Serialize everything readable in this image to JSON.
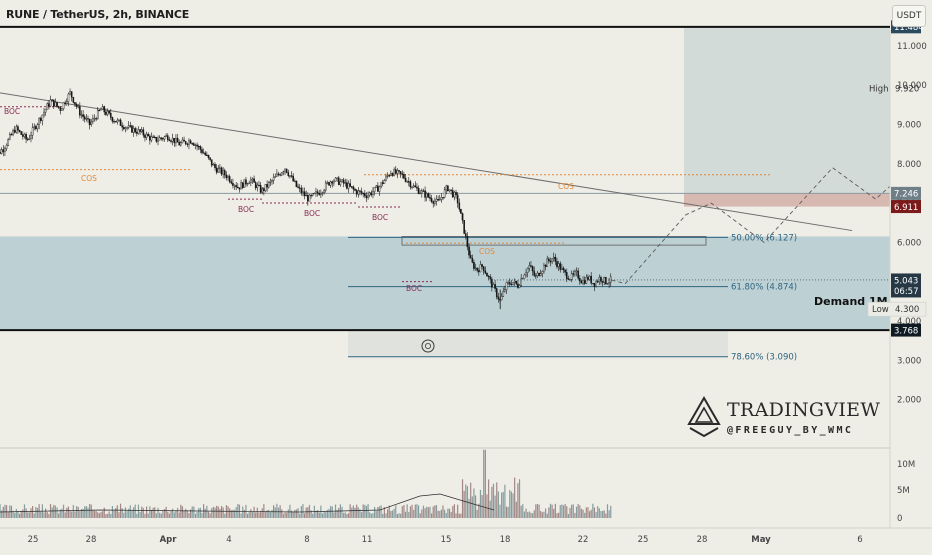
{
  "header": {
    "title": "RUNE / TetherUS, 2h, BINANCE"
  },
  "toolbar": {
    "currency_label": "USDT"
  },
  "watermark": {
    "brand": "TRADINGVIEW",
    "handle": "@FREEGUY_BY_WMC",
    "logo_icon": "pyramid-logo-icon"
  },
  "colors": {
    "background": "#eeede6",
    "candle": "#141414",
    "demand_zone": "#b7cdd3",
    "target_zone": "#d3dbd8",
    "fib_line": "#2e6580",
    "cos_line": "#e08a3c",
    "boc_line": "#8a2d57",
    "resistance_label": "#2c4a5e",
    "support_label": "#0f1a22",
    "stop_label": "#7b1a1a",
    "volume": "#6c8a8f"
  },
  "chart_data": {
    "type": "candlestick",
    "symbol": "RUNE / TetherUS",
    "interval": "2h",
    "exchange": "BINANCE",
    "price_axis": {
      "ticks": [
        "11.000",
        "10.000",
        "9.000",
        "8.000",
        "7.000",
        "6.000",
        "5.000",
        "4.000",
        "3.000",
        "2.000"
      ],
      "range": [
        1.6,
        11.8
      ]
    },
    "time_axis": {
      "ticks": [
        "25",
        "28",
        "Apr",
        "4",
        "8",
        "11",
        "15",
        "18",
        "22",
        "25",
        "28",
        "May",
        "6"
      ]
    },
    "volume_axis": {
      "ticks": [
        "10M",
        "5M",
        "0"
      ]
    },
    "price_path": [
      {
        "t": 23.0,
        "p": 8.1
      },
      {
        "t": 23.6,
        "p": 8.4
      },
      {
        "t": 24.2,
        "p": 8.9
      },
      {
        "t": 24.8,
        "p": 8.6
      },
      {
        "t": 25.4,
        "p": 9.1
      },
      {
        "t": 26.0,
        "p": 9.6
      },
      {
        "t": 26.5,
        "p": 9.4
      },
      {
        "t": 27.0,
        "p": 9.8
      },
      {
        "t": 27.5,
        "p": 9.3
      },
      {
        "t": 28.0,
        "p": 9.0
      },
      {
        "t": 28.6,
        "p": 9.4
      },
      {
        "t": 29.3,
        "p": 9.1
      },
      {
        "t": 30.0,
        "p": 8.9
      },
      {
        "t": 30.6,
        "p": 8.8
      },
      {
        "t": 31.3,
        "p": 8.6
      },
      {
        "t": 32.0,
        "p": 8.7
      },
      {
        "t": 32.6,
        "p": 8.5
      },
      {
        "t": 33.2,
        "p": 8.6
      },
      {
        "t": 33.8,
        "p": 8.3
      },
      {
        "t": 34.4,
        "p": 7.9
      },
      {
        "t": 35.0,
        "p": 7.7
      },
      {
        "t": 35.6,
        "p": 7.4
      },
      {
        "t": 36.2,
        "p": 7.6
      },
      {
        "t": 36.8,
        "p": 7.3
      },
      {
        "t": 37.4,
        "p": 7.6
      },
      {
        "t": 38.0,
        "p": 7.9
      },
      {
        "t": 38.6,
        "p": 7.4
      },
      {
        "t": 39.2,
        "p": 7.1
      },
      {
        "t": 39.8,
        "p": 7.3
      },
      {
        "t": 40.4,
        "p": 7.6
      },
      {
        "t": 41.0,
        "p": 7.5
      },
      {
        "t": 41.6,
        "p": 7.3
      },
      {
        "t": 42.2,
        "p": 7.2
      },
      {
        "t": 42.8,
        "p": 7.4
      },
      {
        "t": 43.4,
        "p": 7.8
      },
      {
        "t": 44.0,
        "p": 7.7
      },
      {
        "t": 44.6,
        "p": 7.4
      },
      {
        "t": 45.2,
        "p": 7.2
      },
      {
        "t": 45.8,
        "p": 7.0
      },
      {
        "t": 46.3,
        "p": 7.4
      },
      {
        "t": 46.8,
        "p": 7.1
      },
      {
        "t": 47.2,
        "p": 6.2
      },
      {
        "t": 47.5,
        "p": 5.5
      },
      {
        "t": 47.8,
        "p": 5.3
      },
      {
        "t": 48.1,
        "p": 5.4
      },
      {
        "t": 48.4,
        "p": 5.1
      },
      {
        "t": 48.7,
        "p": 4.8
      },
      {
        "t": 49.0,
        "p": 4.5
      },
      {
        "t": 49.3,
        "p": 4.9
      },
      {
        "t": 49.6,
        "p": 5.0
      },
      {
        "t": 49.9,
        "p": 4.9
      },
      {
        "t": 50.2,
        "p": 5.2
      },
      {
        "t": 50.5,
        "p": 5.4
      },
      {
        "t": 50.8,
        "p": 5.1
      },
      {
        "t": 51.1,
        "p": 5.3
      },
      {
        "t": 51.4,
        "p": 5.5
      },
      {
        "t": 51.7,
        "p": 5.6
      },
      {
        "t": 52.0,
        "p": 5.4
      },
      {
        "t": 52.3,
        "p": 5.2
      },
      {
        "t": 52.6,
        "p": 5.1
      },
      {
        "t": 52.9,
        "p": 5.2
      },
      {
        "t": 53.2,
        "p": 5.0
      },
      {
        "t": 53.5,
        "p": 5.1
      },
      {
        "t": 53.8,
        "p": 4.95
      },
      {
        "t": 54.1,
        "p": 5.1
      },
      {
        "t": 54.4,
        "p": 5.0
      },
      {
        "t": 54.7,
        "p": 5.04
      }
    ],
    "projection_path": [
      {
        "t": 54.7,
        "p": 5.04
      },
      {
        "t": 55.4,
        "p": 4.95
      },
      {
        "t": 58.5,
        "p": 6.7
      },
      {
        "t": 59.8,
        "p": 7.0
      },
      {
        "t": 62.5,
        "p": 6.0
      },
      {
        "t": 66.0,
        "p": 7.9
      },
      {
        "t": 68.2,
        "p": 7.1
      },
      {
        "t": 74.3,
        "p": 9.8
      }
    ],
    "trendline": [
      {
        "t": 18.5,
        "p": 10.2
      },
      {
        "t": 67.0,
        "p": 6.3
      }
    ],
    "zones": [
      {
        "name": "Demand 1M",
        "top": 6.15,
        "bottom": 3.768
      },
      {
        "name": "target",
        "top": 11.484,
        "bottom": 6.911
      },
      {
        "name": "stop",
        "top": 7.246,
        "bottom": 6.911
      }
    ],
    "fibonacci": [
      {
        "label": "50.00% (6.127)",
        "value": 6.127
      },
      {
        "label": "61.80% (4.874)",
        "value": 4.874
      },
      {
        "label": "78.60% (3.090)",
        "value": 3.09
      }
    ],
    "levels": [
      {
        "label": "11.484",
        "value": 11.484,
        "kind": "resistance"
      },
      {
        "label": "3.768",
        "value": 3.768,
        "kind": "support"
      }
    ],
    "price_labels": [
      {
        "label": "9.920",
        "value": 9.92,
        "tag": "High"
      },
      {
        "label": "7.246",
        "value": 7.246,
        "tag": ""
      },
      {
        "label": "6.911",
        "value": 6.911,
        "tag": ""
      },
      {
        "label": "5.043",
        "value": 5.043,
        "tag": "06:57"
      },
      {
        "label": "4.300",
        "value": 4.3,
        "tag": "Low"
      }
    ],
    "annotations": [
      {
        "text": "BOC",
        "kind": "boc"
      },
      {
        "text": "COS",
        "kind": "cos"
      },
      {
        "text": "BOC",
        "kind": "boc"
      },
      {
        "text": "BOC",
        "kind": "boc"
      },
      {
        "text": "BOC",
        "kind": "boc"
      },
      {
        "text": "COS",
        "kind": "cos"
      },
      {
        "text": "COS",
        "kind": "cos"
      },
      {
        "text": "BOC",
        "kind": "boc"
      },
      {
        "text": "Demand 1M",
        "kind": "zone"
      }
    ]
  }
}
